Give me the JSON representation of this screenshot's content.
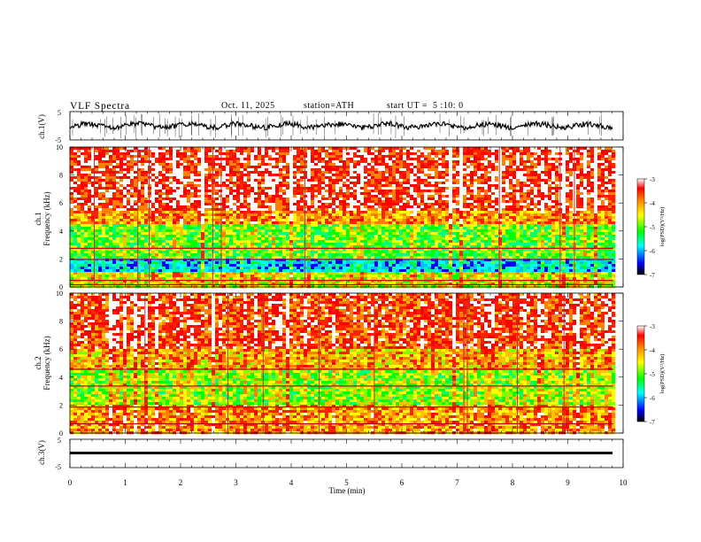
{
  "header": {
    "title": "VLF Spectra",
    "date": "Oct. 11, 2025",
    "station": "station=ATH",
    "start": "start UT =  5 :10: 0"
  },
  "chart_data": [
    {
      "type": "line",
      "name": "ch1-waveform",
      "ylabel": "ch.1(V)",
      "ylim": [
        -5,
        5
      ],
      "yticks": [
        "5",
        "-5"
      ],
      "xlim": [
        0,
        10
      ]
    },
    {
      "type": "heatmap",
      "name": "ch1-spectrogram",
      "ylabel": "Frequency (kHz)",
      "channel_label": "ch.1",
      "ylim": [
        0,
        10
      ],
      "yticks": [
        "0",
        "2",
        "4",
        "6",
        "8",
        "10"
      ],
      "xlim": [
        0,
        10
      ],
      "data_end_min": 9.82,
      "colorbar": {
        "label": "log(PSD)(V²/Hz)",
        "range": [
          -7,
          -3
        ],
        "ticks": [
          "-3",
          "-4",
          "-5",
          "-6",
          "-7"
        ]
      }
    },
    {
      "type": "heatmap",
      "name": "ch2-spectrogram",
      "ylabel": "Frequency (kHz)",
      "channel_label": "ch.2",
      "ylim": [
        0,
        10
      ],
      "yticks": [
        "0",
        "2",
        "4",
        "6",
        "8",
        "10"
      ],
      "xlim": [
        0,
        10
      ],
      "data_end_min": 9.82,
      "colorbar": {
        "label": "log(PSD)(V²/Hz)",
        "range": [
          -7,
          -3
        ],
        "ticks": [
          "-3",
          "-4",
          "-5",
          "-6",
          "-7"
        ]
      }
    },
    {
      "type": "line",
      "name": "ch3-waveform",
      "ylabel": "ch.3(V)",
      "ylim": [
        -5,
        5
      ],
      "yticks": [
        "5",
        "-5"
      ],
      "xlim": [
        0,
        10
      ]
    }
  ],
  "xaxis": {
    "label": "Time (min)",
    "ticks": [
      "0",
      "1",
      "2",
      "3",
      "4",
      "5",
      "6",
      "7",
      "8",
      "9",
      "10"
    ]
  }
}
